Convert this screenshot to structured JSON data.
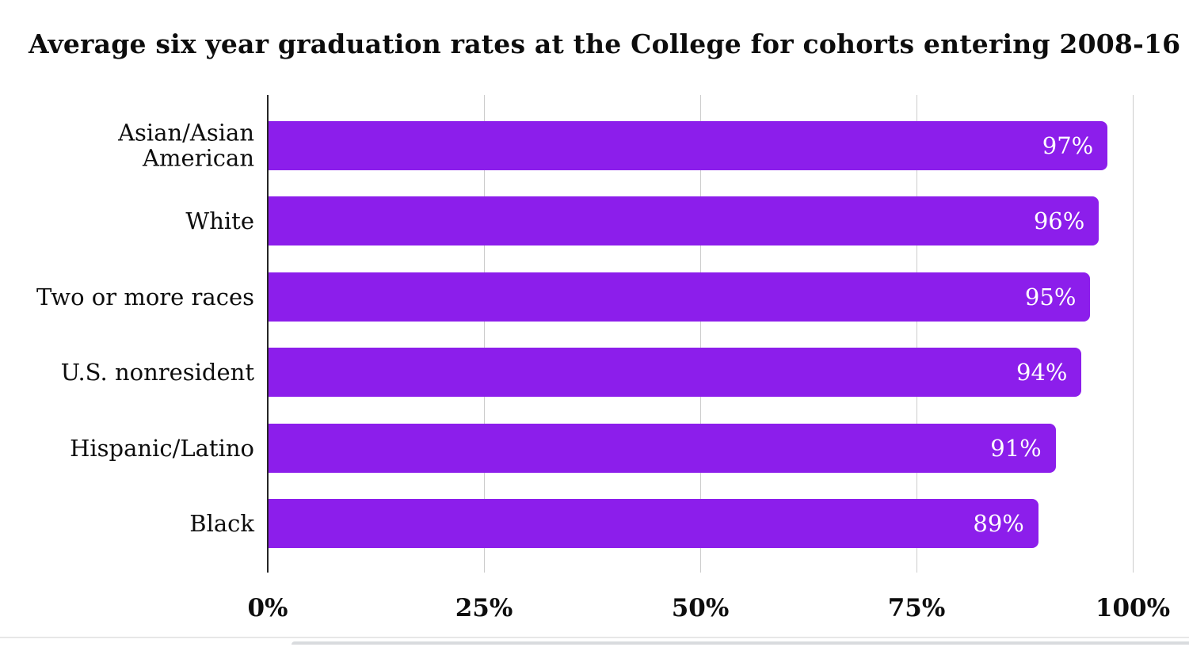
{
  "chart_data": {
    "type": "bar",
    "orientation": "horizontal",
    "title": "Average six year graduation rates at the College for cohorts entering 2008-16",
    "categories": [
      "Asian/Asian American",
      "White",
      "Two or more races",
      "U.S. nonresident",
      "Hispanic/Latino",
      "Black"
    ],
    "values": [
      97,
      96,
      95,
      94,
      91,
      89
    ],
    "value_labels": [
      "97%",
      "96%",
      "95%",
      "94%",
      "91%",
      "89%"
    ],
    "x_tick_values": [
      0,
      25,
      50,
      75,
      100
    ],
    "x_tick_labels": [
      "0%",
      "25%",
      "50%",
      "75%",
      "100%"
    ],
    "xlim": [
      0,
      100
    ],
    "grid": "vertical-gridlines-on",
    "legend": "none",
    "bar_color": "#8c1eeb",
    "value_label_color": "#ffffff",
    "gridline_color": "#cccccc",
    "axis_line_color": "#262626",
    "text_color": "#0d0d0d"
  }
}
